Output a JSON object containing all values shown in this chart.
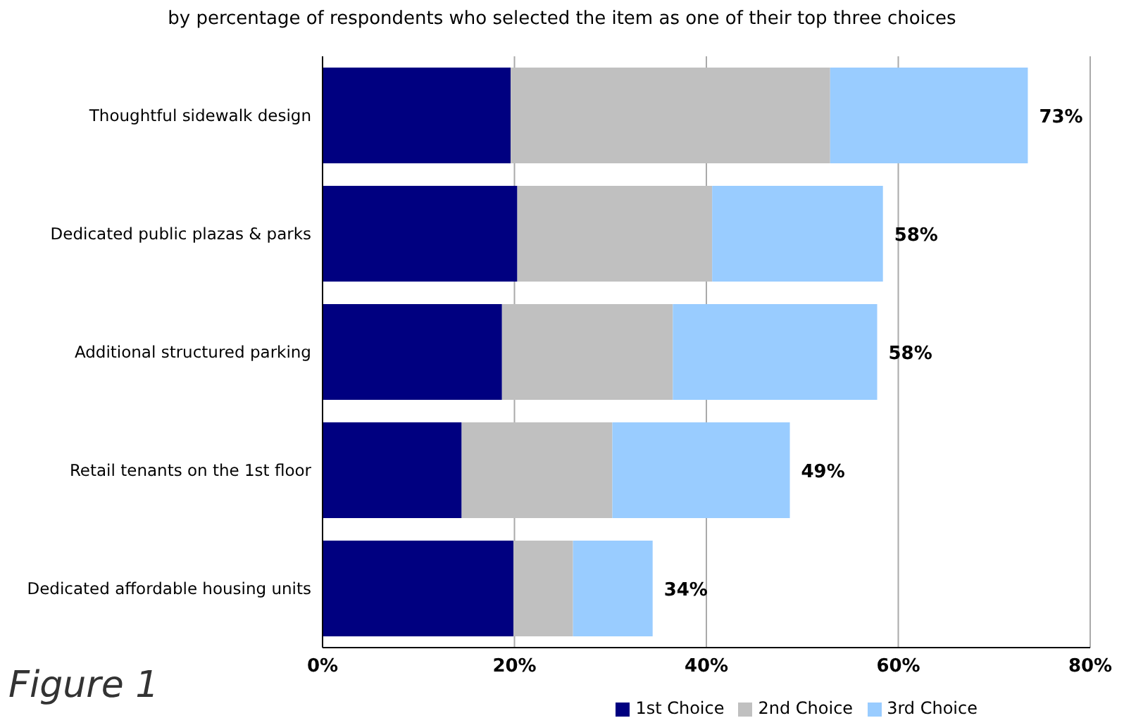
{
  "chart_data": {
    "type": "bar",
    "orientation": "horizontal",
    "stacked": true,
    "title": "by percentage of respondents who selected the item as one of their top three choices",
    "categories": [
      "Thoughtful sidewalk design",
      "Dedicated public plazas & parks",
      "Additional structured parking",
      "Retail tenants on the 1st floor",
      "Dedicated affordable housing units"
    ],
    "series": [
      {
        "name": "1st Choice",
        "color": "#000080",
        "values": [
          19.6,
          20.3,
          18.7,
          14.5,
          19.9
        ]
      },
      {
        "name": "2nd Choice",
        "color": "#c0c0c0",
        "values": [
          33.3,
          20.3,
          17.8,
          15.7,
          6.2
        ]
      },
      {
        "name": "3rd Choice",
        "color": "#99ccff",
        "values": [
          20.6,
          17.8,
          21.3,
          18.5,
          8.3
        ]
      }
    ],
    "totals": [
      "73%",
      "58%",
      "58%",
      "49%",
      "34%"
    ],
    "xlim": [
      0,
      80
    ],
    "xticks": [
      {
        "value": 0,
        "label": "0%"
      },
      {
        "value": 20,
        "label": "20%"
      },
      {
        "value": 40,
        "label": "40%"
      },
      {
        "value": 60,
        "label": "60%"
      },
      {
        "value": 80,
        "label": "80%"
      }
    ],
    "grid": "x",
    "legend": "bottom right",
    "annotations": [
      "Figure 1"
    ]
  }
}
